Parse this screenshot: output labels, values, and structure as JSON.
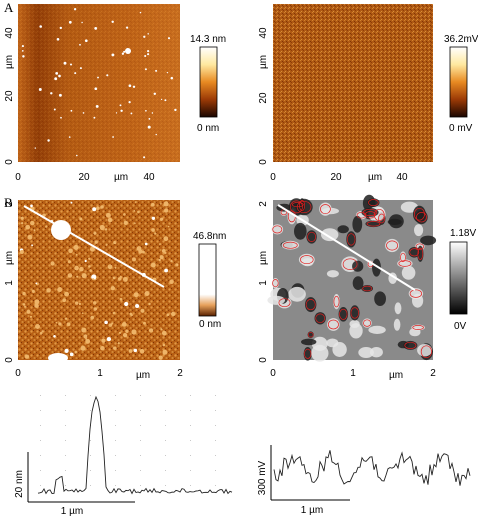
{
  "panels": {
    "A": {
      "letter": "A",
      "left": {
        "x_axis_unit": "µm",
        "y_axis_unit": "µm",
        "x_ticks": [
          "0",
          "20",
          "40"
        ],
        "y_ticks": [
          "0",
          "20",
          "40"
        ],
        "colorbar": {
          "max_label": "14.3 nm",
          "min_label": "0 nm"
        }
      },
      "right": {
        "x_axis_unit": "µm",
        "y_axis_unit": "µm",
        "x_ticks": [
          "0",
          "20",
          "40"
        ],
        "y_ticks": [
          "0",
          "20",
          "40"
        ],
        "colorbar": {
          "max_label": "36.2mV",
          "min_label": "0 mV"
        }
      }
    },
    "B": {
      "letter": "B",
      "left": {
        "x_axis_unit": "µm",
        "y_axis_unit": "µm",
        "x_ticks": [
          "0",
          "1",
          "2"
        ],
        "y_ticks": [
          "0",
          "1",
          "2"
        ],
        "colorbar": {
          "max_label": "46.8nm",
          "min_label": "0 nm"
        }
      },
      "right": {
        "x_axis_unit": "µm",
        "y_axis_unit": "µm",
        "x_ticks": [
          "0",
          "1",
          "2"
        ],
        "y_ticks": [
          "0",
          "1",
          "2"
        ],
        "colorbar": {
          "max_label": "1.18V",
          "min_label": "0V"
        }
      }
    }
  },
  "profiles": {
    "height": {
      "scale_y_label": "20 nm",
      "scale_x_label": "1 µm"
    },
    "potential": {
      "scale_y_label": "300 mV",
      "scale_x_label": "1 µm"
    }
  },
  "colors": {
    "afm_dark": "#2a0a00",
    "afm_mid": "#b8560c",
    "afm_light": "#ffffff",
    "kpfm_dark": "#1a1a1a",
    "kpfm_light": "#f0f0f0",
    "contour_red": "#e02020"
  }
}
